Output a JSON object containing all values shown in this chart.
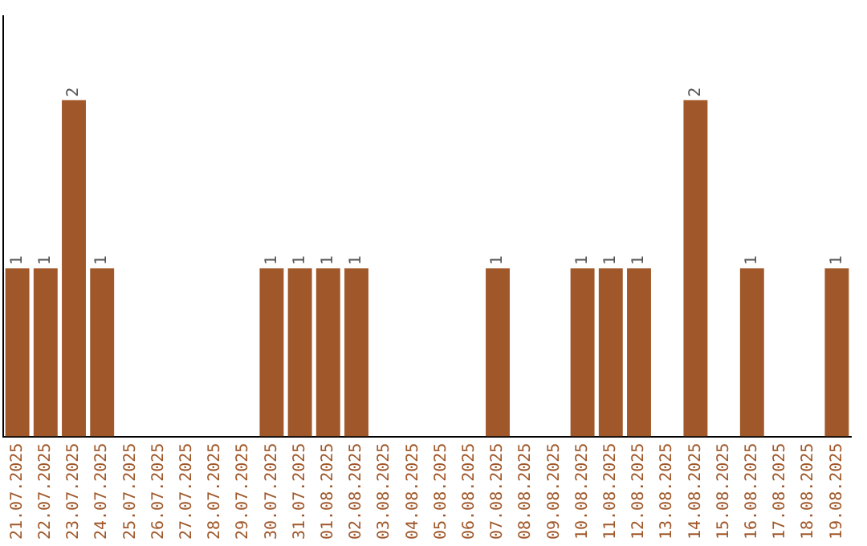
{
  "chart_data": {
    "type": "bar",
    "categories": [
      "21.07.2025",
      "22.07.2025",
      "23.07.2025",
      "24.07.2025",
      "25.07.2025",
      "26.07.2025",
      "27.07.2025",
      "28.07.2025",
      "29.07.2025",
      "30.07.2025",
      "31.07.2025",
      "01.08.2025",
      "02.08.2025",
      "03.08.2025",
      "04.08.2025",
      "05.08.2025",
      "06.08.2025",
      "07.08.2025",
      "08.08.2025",
      "09.08.2025",
      "10.08.2025",
      "11.08.2025",
      "12.08.2025",
      "13.08.2025",
      "14.08.2025",
      "15.08.2025",
      "16.08.2025",
      "17.08.2025",
      "18.08.2025",
      "19.08.2025"
    ],
    "values": [
      1,
      1,
      2,
      1,
      0,
      0,
      0,
      0,
      0,
      1,
      1,
      1,
      1,
      0,
      0,
      0,
      0,
      1,
      0,
      0,
      1,
      1,
      1,
      0,
      2,
      0,
      1,
      0,
      0,
      1
    ],
    "value_labels": [
      "1",
      "1",
      "2",
      "1",
      null,
      null,
      null,
      null,
      null,
      "1",
      "1",
      "1",
      "1",
      null,
      null,
      null,
      null,
      "1",
      null,
      null,
      "1",
      "1",
      "1",
      null,
      "2",
      null,
      "1",
      null,
      null,
      "1"
    ],
    "color": "#a0582a",
    "grid": false,
    "legend": false,
    "tick_labels": "x"
  }
}
